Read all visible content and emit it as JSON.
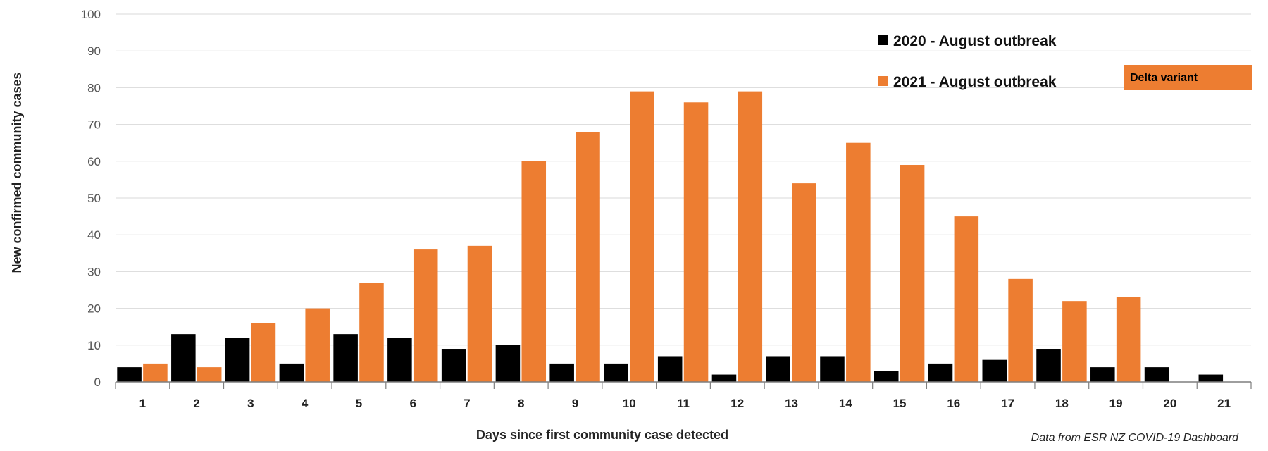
{
  "chart_data": {
    "type": "bar",
    "categories": [
      "1",
      "2",
      "3",
      "4",
      "5",
      "6",
      "7",
      "8",
      "9",
      "10",
      "11",
      "12",
      "13",
      "14",
      "15",
      "16",
      "17",
      "18",
      "19",
      "20",
      "21"
    ],
    "series": [
      {
        "name": "2020 - August outbreak",
        "color": "#000000",
        "values": [
          4,
          13,
          12,
          5,
          13,
          12,
          9,
          10,
          5,
          5,
          7,
          2,
          7,
          7,
          3,
          5,
          6,
          9,
          4,
          4,
          2
        ]
      },
      {
        "name": "2021 - August outbreak",
        "color": "#ED7D31",
        "values": [
          5,
          4,
          16,
          20,
          27,
          36,
          37,
          60,
          68,
          79,
          76,
          79,
          54,
          65,
          59,
          45,
          28,
          22,
          23,
          null,
          null
        ]
      }
    ],
    "xlabel": "Days since first community case detected",
    "ylabel": "New confirmed community cases",
    "ylim": [
      0,
      100
    ],
    "yticks": [
      0,
      10,
      20,
      30,
      40,
      50,
      60,
      70,
      80,
      90,
      100
    ],
    "grid": true,
    "legend": "top-right",
    "annotation": {
      "text": "Delta variant",
      "color": "#ED7D31"
    },
    "source_note": "Data from ESR NZ COVID-19 Dashboard"
  }
}
